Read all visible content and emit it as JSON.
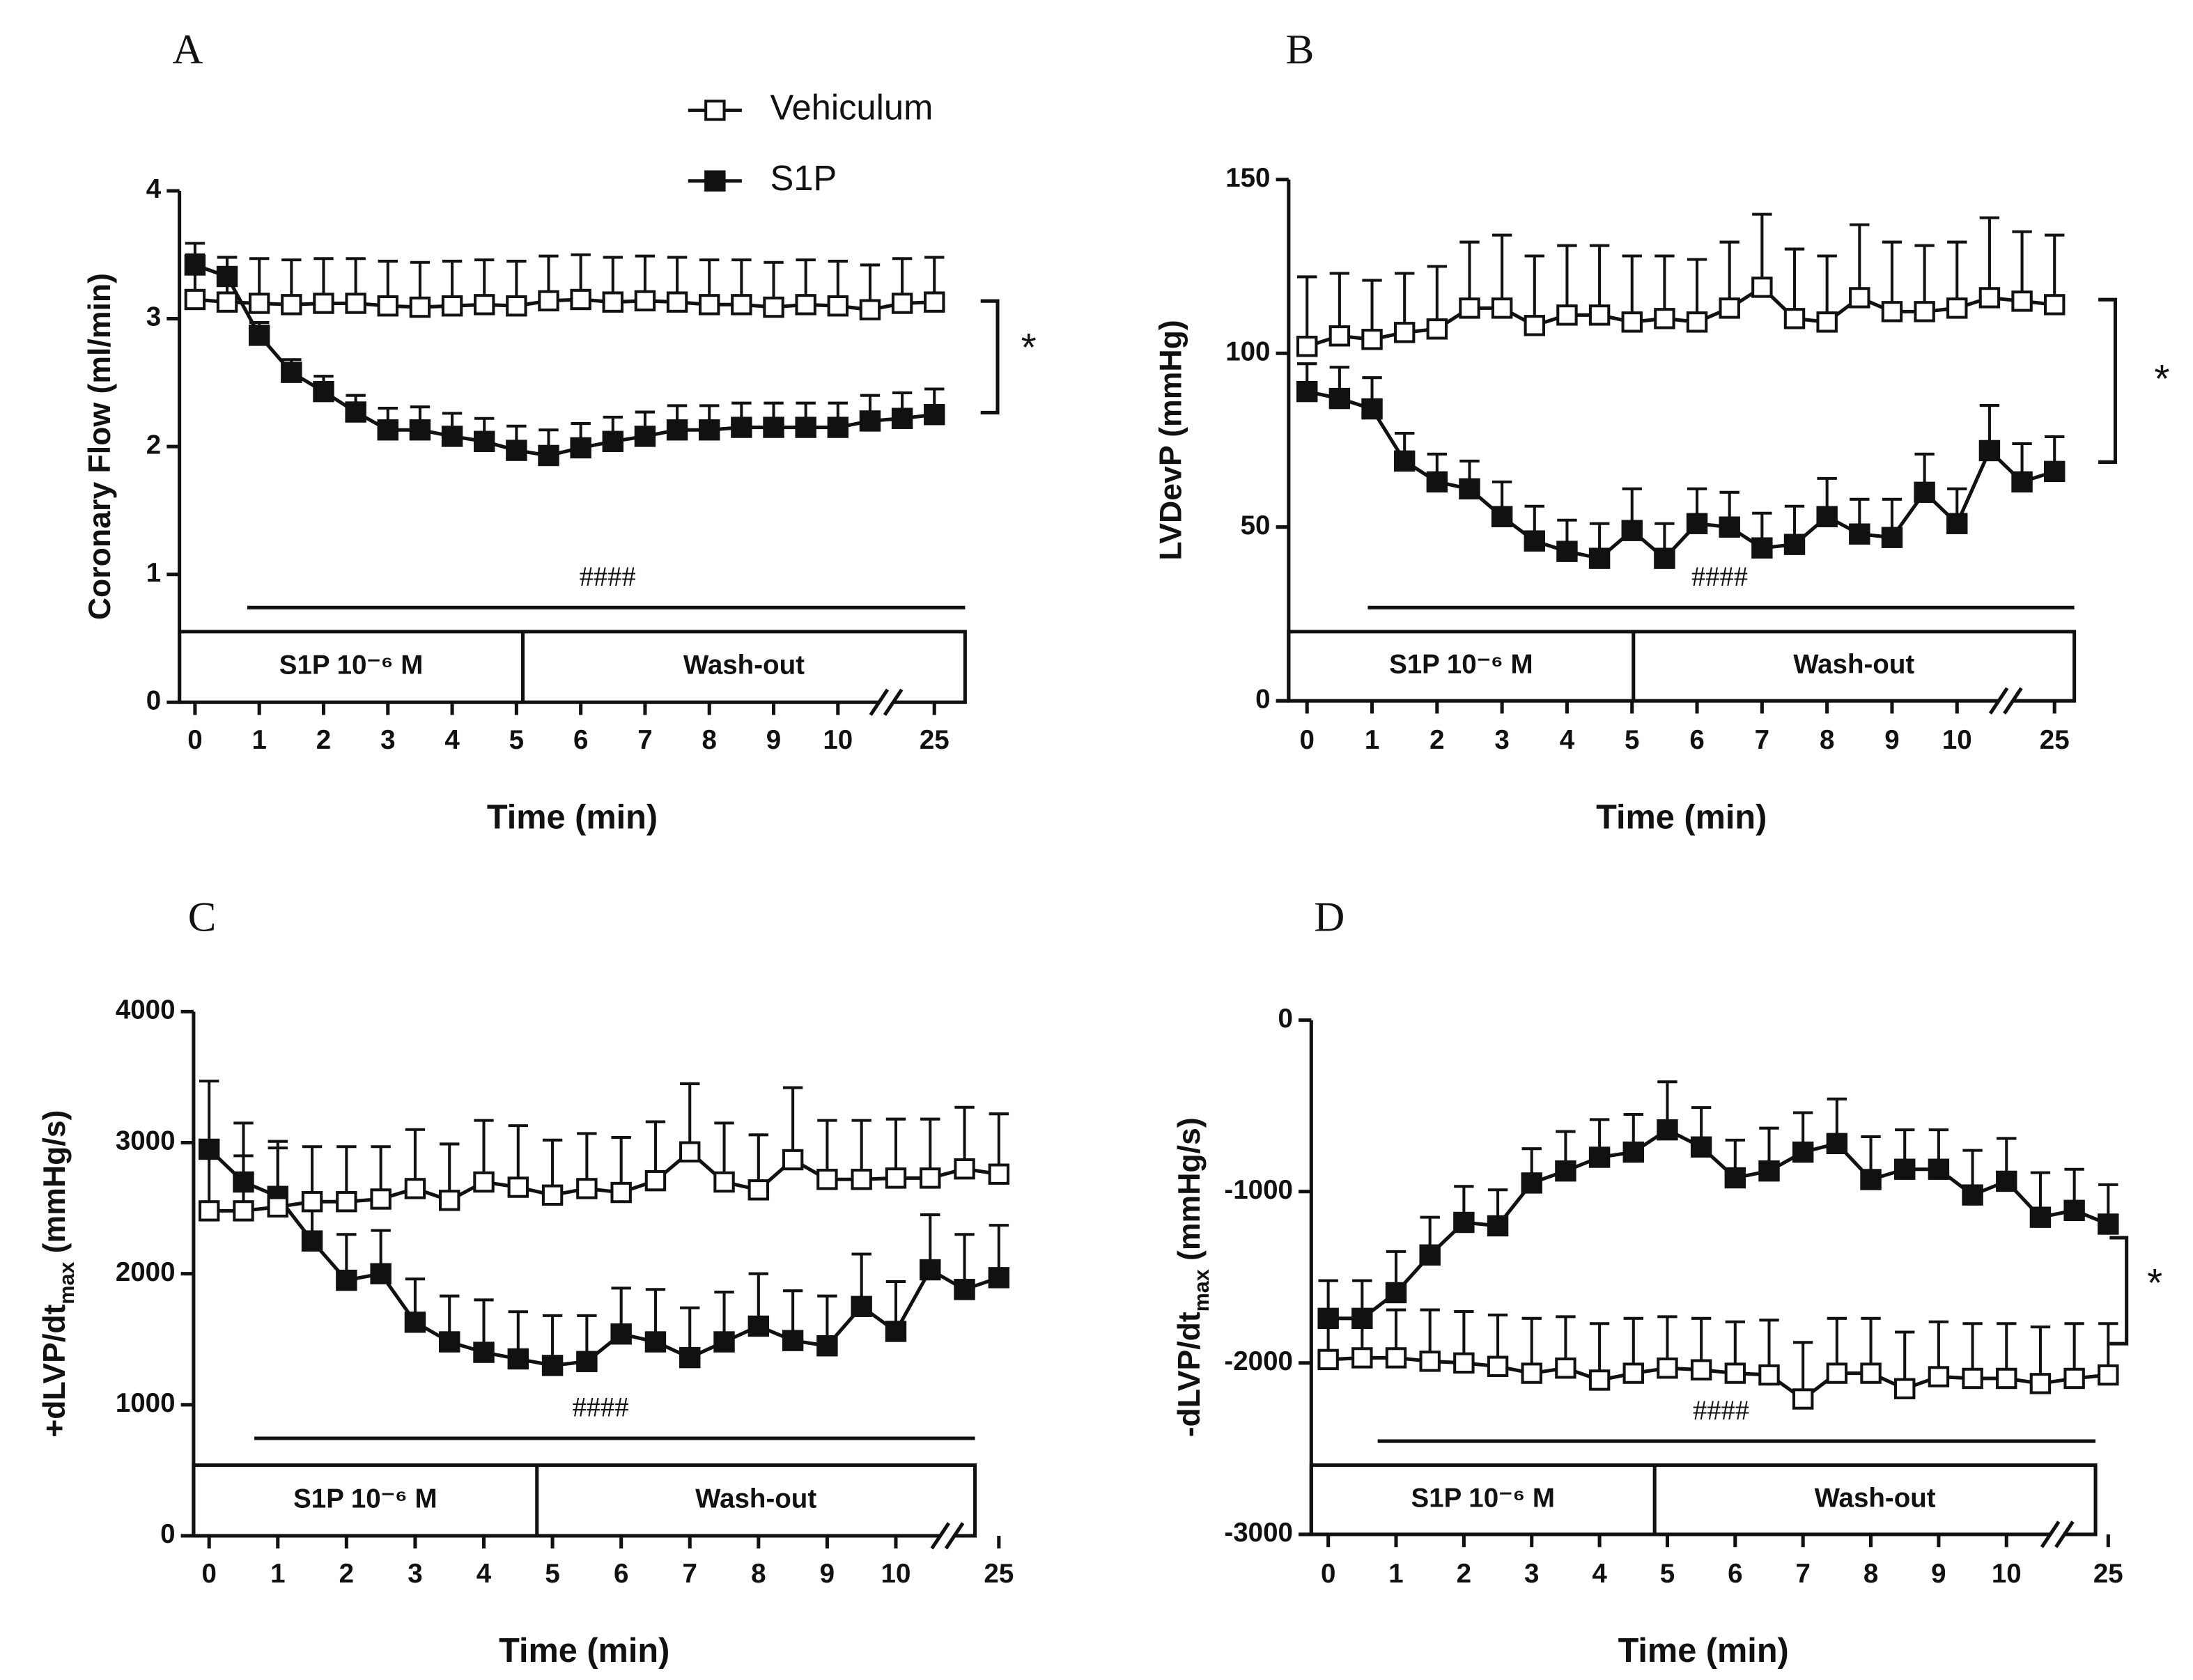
{
  "chart_data": [
    {
      "type": "line",
      "label": "A",
      "ylabel": "Coronary Flow (ml/min)",
      "xlabel": "Time (min)",
      "categories": [
        "0",
        null,
        "1",
        null,
        "2",
        null,
        "3",
        null,
        "4",
        null,
        "5",
        null,
        "6",
        null,
        "7",
        null,
        "8",
        null,
        "9",
        null,
        "10",
        null,
        null,
        "25"
      ],
      "ylim": [
        0,
        4
      ],
      "yticks": [
        0,
        1,
        2,
        3,
        4
      ],
      "series": [
        {
          "name": "Vehiculum",
          "color": "#111111",
          "marker_fill": "#ffffff",
          "values": [
            3.15,
            3.13,
            3.12,
            3.11,
            3.12,
            3.12,
            3.1,
            3.09,
            3.1,
            3.11,
            3.1,
            3.14,
            3.15,
            3.13,
            3.14,
            3.13,
            3.11,
            3.11,
            3.09,
            3.11,
            3.1,
            3.07,
            3.12,
            3.13
          ],
          "errors": [
            0.35,
            0.35,
            0.35,
            0.35,
            0.35,
            0.35,
            0.35,
            0.35,
            0.35,
            0.35,
            0.35,
            0.35,
            0.35,
            0.35,
            0.35,
            0.35,
            0.35,
            0.35,
            0.35,
            0.35,
            0.35,
            0.35,
            0.35,
            0.35
          ]
        },
        {
          "name": "S1P",
          "color": "#111111",
          "marker_fill": "#111111",
          "values": [
            3.42,
            3.33,
            2.87,
            2.58,
            2.43,
            2.27,
            2.13,
            2.13,
            2.08,
            2.04,
            1.97,
            1.93,
            1.99,
            2.04,
            2.08,
            2.13,
            2.13,
            2.15,
            2.15,
            2.15,
            2.15,
            2.2,
            2.22,
            2.25
          ],
          "errors": [
            0.17,
            0.15,
            0.1,
            0.1,
            0.12,
            0.13,
            0.17,
            0.18,
            0.18,
            0.18,
            0.19,
            0.2,
            0.19,
            0.19,
            0.19,
            0.19,
            0.19,
            0.19,
            0.19,
            0.19,
            0.19,
            0.2,
            0.2,
            0.2
          ]
        }
      ],
      "treatment": "S1P 10⁻⁶ M",
      "washout": "Wash-out",
      "hash": "####",
      "star": "*"
    },
    {
      "type": "line",
      "label": "B",
      "ylabel": "LVDevP (mmHg)",
      "xlabel": "Time (min)",
      "categories": [
        "0",
        null,
        "1",
        null,
        "2",
        null,
        "3",
        null,
        "4",
        null,
        "5",
        null,
        "6",
        null,
        "7",
        null,
        "8",
        null,
        "9",
        null,
        "10",
        null,
        null,
        "25"
      ],
      "ylim": [
        0,
        150
      ],
      "yticks": [
        0,
        50,
        100,
        150
      ],
      "series": [
        {
          "name": "Vehiculum",
          "color": "#111111",
          "marker_fill": "#ffffff",
          "values": [
            102,
            105,
            104,
            106,
            107,
            113,
            113,
            108,
            111,
            111,
            109,
            110,
            109,
            113,
            119,
            110,
            109,
            116,
            112,
            112,
            113,
            116,
            115,
            114
          ],
          "errors": [
            20,
            18,
            17,
            17,
            18,
            19,
            21,
            20,
            20,
            20,
            19,
            18,
            18,
            19,
            21,
            20,
            19,
            21,
            20,
            19,
            19,
            23,
            20,
            20
          ]
        },
        {
          "name": "S1P",
          "color": "#111111",
          "marker_fill": "#111111",
          "values": [
            89,
            87,
            84,
            69,
            63,
            61,
            53,
            46,
            43,
            41,
            49,
            41,
            51,
            50,
            44,
            45,
            53,
            48,
            47,
            60,
            51,
            72,
            63,
            66
          ],
          "errors": [
            8,
            9,
            9,
            8,
            8,
            8,
            10,
            10,
            9,
            10,
            12,
            10,
            10,
            10,
            10,
            11,
            11,
            10,
            11,
            11,
            10,
            13,
            11,
            10
          ]
        }
      ],
      "treatment": "S1P 10⁻⁶ M",
      "washout": "Wash-out",
      "hash": "####",
      "star": "*"
    },
    {
      "type": "line",
      "label": "C",
      "ylabel": [
        "+dLVP/dt",
        "max",
        " (mmHg/s)"
      ],
      "xlabel": "Time (min)",
      "categories": [
        "0",
        null,
        "1",
        null,
        "2",
        null,
        "3",
        null,
        "4",
        null,
        "5",
        null,
        "6",
        null,
        "7",
        null,
        "8",
        null,
        "9",
        null,
        "10",
        null,
        null,
        "25"
      ],
      "ylim": [
        0,
        4000
      ],
      "yticks": [
        0,
        1000,
        2000,
        3000,
        4000
      ],
      "series": [
        {
          "name": "Vehiculum",
          "color": "#111111",
          "marker_fill": "#ffffff",
          "values": [
            2480,
            2480,
            2510,
            2550,
            2550,
            2570,
            2650,
            2560,
            2700,
            2660,
            2600,
            2650,
            2620,
            2710,
            2930,
            2700,
            2640,
            2870,
            2720,
            2720,
            2730,
            2730,
            2800,
            2760
          ],
          "errors": [
            420,
            420,
            450,
            420,
            420,
            400,
            450,
            430,
            470,
            470,
            420,
            420,
            420,
            450,
            520,
            450,
            420,
            550,
            450,
            450,
            450,
            450,
            470,
            460
          ]
        },
        {
          "name": "S1P",
          "color": "#111111",
          "marker_fill": "#111111",
          "values": [
            2950,
            2700,
            2590,
            2250,
            1950,
            2000,
            1630,
            1480,
            1400,
            1350,
            1300,
            1330,
            1540,
            1480,
            1360,
            1480,
            1600,
            1490,
            1450,
            1750,
            1560,
            2030,
            1880,
            1970
          ],
          "errors": [
            520,
            450,
            420,
            330,
            350,
            330,
            330,
            350,
            400,
            360,
            380,
            350,
            350,
            400,
            380,
            380,
            400,
            380,
            380,
            400,
            380,
            420,
            420,
            400
          ]
        }
      ],
      "treatment": "S1P 10⁻⁶ M",
      "washout": "Wash-out",
      "hash": "####"
    },
    {
      "type": "line",
      "label": "D",
      "ylabel": [
        "-dLVP/dt",
        "max",
        " (mmHg/s)"
      ],
      "xlabel": "Time (min)",
      "categories": [
        "0",
        null,
        "1",
        null,
        "2",
        null,
        "3",
        null,
        "4",
        null,
        "5",
        null,
        "6",
        null,
        "7",
        null,
        "8",
        null,
        "9",
        null,
        "10",
        null,
        null,
        "25"
      ],
      "ylim": [
        -3000,
        0
      ],
      "yticks": [
        -3000,
        -2000,
        -1000,
        0
      ],
      "series": [
        {
          "name": "Vehiculum",
          "color": "#111111",
          "marker_fill": "#ffffff",
          "values": [
            -1980,
            -1970,
            -1970,
            -1990,
            -2000,
            -2020,
            -2060,
            -2030,
            -2100,
            -2060,
            -2030,
            -2040,
            -2060,
            -2070,
            -2210,
            -2060,
            -2060,
            -2150,
            -2080,
            -2090,
            -2090,
            -2120,
            -2090,
            -2070
          ],
          "errors": [
            250,
            250,
            280,
            300,
            300,
            300,
            320,
            300,
            330,
            320,
            300,
            300,
            300,
            320,
            330,
            320,
            320,
            330,
            320,
            320,
            320,
            330,
            320,
            300
          ]
        },
        {
          "name": "S1P",
          "color": "#111111",
          "marker_fill": "#111111",
          "values": [
            -1740,
            -1740,
            -1590,
            -1370,
            -1180,
            -1200,
            -950,
            -880,
            -800,
            -770,
            -640,
            -740,
            -920,
            -880,
            -770,
            -720,
            -930,
            -870,
            -870,
            -1020,
            -940,
            -1150,
            -1110,
            -1190
          ],
          "errors": [
            220,
            220,
            240,
            220,
            210,
            210,
            200,
            230,
            220,
            220,
            280,
            230,
            220,
            250,
            230,
            260,
            250,
            230,
            230,
            260,
            250,
            260,
            240,
            230
          ]
        }
      ],
      "treatment": "S1P 10⁻⁶ M",
      "washout": "Wash-out",
      "hash": "####",
      "star": "*"
    }
  ]
}
